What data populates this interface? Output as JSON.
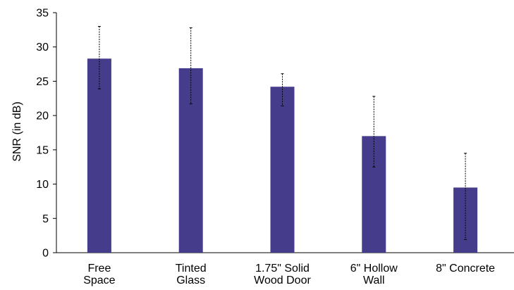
{
  "chart_data": {
    "type": "bar",
    "title": "",
    "xlabel": "",
    "ylabel": "SNR (in dB)",
    "ylim": [
      0,
      35
    ],
    "yticks": [
      "0",
      "5",
      "10",
      "15",
      "20",
      "25",
      "30",
      "35"
    ],
    "categories": [
      [
        "Free",
        "Space"
      ],
      [
        "Tinted",
        "Glass"
      ],
      [
        "1.75\" Solid",
        "Wood Door"
      ],
      [
        "6\" Hollow",
        "Wall"
      ],
      [
        "8\" Concrete"
      ]
    ],
    "values": [
      28.3,
      26.9,
      24.2,
      17.0,
      9.5
    ],
    "error_low": [
      23.9,
      21.7,
      21.4,
      12.5,
      1.9
    ],
    "error_high": [
      33.0,
      32.8,
      26.1,
      22.8,
      14.5
    ],
    "grid": false,
    "legend": "none",
    "colors": {
      "bar": "#463c8c",
      "error_bar": "#000000",
      "axis": "#000000"
    }
  }
}
